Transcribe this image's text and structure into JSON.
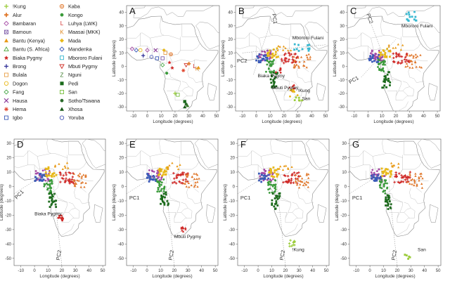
{
  "legend": {
    "col1": [
      {
        "name": "!Kung",
        "color": "#9ccc3c",
        "marker": "plus"
      },
      {
        "name": "Alur",
        "color": "#e0782c",
        "marker": "cross"
      },
      {
        "name": "Bambaran",
        "color": "#a54aa5",
        "marker": "open-diamond"
      },
      {
        "name": "Bamoun",
        "color": "#7c5aa8",
        "marker": "open-square-x"
      },
      {
        "name": "Bantu (Kenya)",
        "color": "#e89a18",
        "marker": "filled-triangle"
      },
      {
        "name": "Bantu (S. Africa)",
        "color": "#4ca63c",
        "marker": "open-triangle"
      },
      {
        "name": "Biaka Pygmy",
        "color": "#d02a28",
        "marker": "star"
      },
      {
        "name": "Brong",
        "color": "#333399",
        "marker": "plus"
      },
      {
        "name": "Bulala",
        "color": "#e8a048",
        "marker": "open-square"
      },
      {
        "name": "Dogon",
        "color": "#e8b818",
        "marker": "open-circle"
      },
      {
        "name": "Fang",
        "color": "#4caa4c",
        "marker": "open-diamond"
      },
      {
        "name": "Hausa",
        "color": "#8a3a9a",
        "marker": "x"
      },
      {
        "name": "Hema",
        "color": "#e04830",
        "marker": "asterisk"
      },
      {
        "name": "Igbo",
        "color": "#3a5ab8",
        "marker": "open-square"
      }
    ],
    "col2": [
      {
        "name": "Kaba",
        "color": "#e0782c",
        "marker": "circle-cross"
      },
      {
        "name": "Kongo",
        "color": "#3a9a3a",
        "marker": "filled-circle"
      },
      {
        "name": "Luhya (LWK)",
        "color": "#d02a28",
        "marker": "L"
      },
      {
        "name": "Maasai (MKK)",
        "color": "#e08820",
        "marker": "K"
      },
      {
        "name": "Mada",
        "color": "#e8b818",
        "marker": "filled-diamond"
      },
      {
        "name": "Mandenka",
        "color": "#3a5ab8",
        "marker": "open-diamond"
      },
      {
        "name": "Mbororo Fulani",
        "color": "#38b8d0",
        "marker": "open-square-b"
      },
      {
        "name": "Mbuti Pygmy",
        "color": "#d03028",
        "marker": "open-triangle-down"
      },
      {
        "name": "Nguni",
        "color": "#3a7a2a",
        "marker": "Z"
      },
      {
        "name": "Pedi",
        "color": "#1a6a1a",
        "marker": "filled-square"
      },
      {
        "name": "San",
        "color": "#7ac040",
        "marker": "open-square-g"
      },
      {
        "name": "Sotho/Tswana",
        "color": "#2a6a2a",
        "marker": "filled-circle-dk"
      },
      {
        "name": "Xhosa",
        "color": "#1a5a1a",
        "marker": "filled-triangle-dk"
      },
      {
        "name": "Yoruba",
        "color": "#4a5ab8",
        "marker": "open-circle-b"
      }
    ]
  },
  "panels": [
    {
      "id": "A",
      "label": "A",
      "xlabel": "Longitude (degrees)",
      "ylabel": "Latitude (degrees)",
      "xticks": [
        "-10",
        "0",
        "10",
        "20",
        "30",
        "40",
        "50"
      ],
      "yticks": [
        "40",
        "30",
        "20",
        "10",
        "0",
        "-10",
        "-20",
        "-30"
      ],
      "annotations": [],
      "pc1": "",
      "pc2": ""
    },
    {
      "id": "B",
      "label": "B",
      "xlabel": "Longitude (degrees)",
      "ylabel": "Latitude (degrees)",
      "xticks": [
        "-10",
        "0",
        "10",
        "20",
        "30",
        "40",
        "50"
      ],
      "yticks": [
        "40",
        "30",
        "20",
        "10",
        "0",
        "-10",
        "-20",
        "-30"
      ],
      "annotations": [
        "Mbororo Fulani",
        "Biaka Pygmy",
        "Mbuti Pygmy",
        "!Kung",
        "San"
      ],
      "pc1": "",
      "pc2": "PC2",
      "pctop": "PC1"
    },
    {
      "id": "C",
      "label": "C",
      "xlabel": "Longitude (degrees)",
      "ylabel": "Latitude (degrees)",
      "xticks": [
        "-10",
        "0",
        "10",
        "20",
        "30",
        "40",
        "50"
      ],
      "yticks": [
        "40",
        "30",
        "20",
        "10",
        "0",
        "-10",
        "-20",
        "-30"
      ],
      "annotations": [
        "Mbororo Fulani"
      ],
      "pc1": "PC1",
      "pc2": "",
      "pctop": "PC2"
    },
    {
      "id": "D",
      "label": "D",
      "xlabel": "Longitude (degrees)",
      "ylabel": "Latitude (degrees)",
      "xticks": [
        "-10",
        "0",
        "10",
        "20",
        "30",
        "40",
        "50"
      ],
      "yticks": [
        "30",
        "20",
        "10",
        "0",
        "-10",
        "-20",
        "-30",
        "-40",
        "-50"
      ],
      "annotations": [
        "Biaka Pygmy"
      ],
      "pc1": "PC1",
      "pc2": "PC2"
    },
    {
      "id": "E",
      "label": "E",
      "xlabel": "Longitude (degrees)",
      "ylabel": "Latitude (degrees)",
      "xticks": [
        "-10",
        "0",
        "10",
        "20",
        "30",
        "40",
        "50"
      ],
      "yticks": [
        "30",
        "20",
        "10",
        "0",
        "-10",
        "-20",
        "-30",
        "-40",
        "-50"
      ],
      "annotations": [
        "Mbuti Pygmy"
      ],
      "pc1": "PC1",
      "pc2": "PC2"
    },
    {
      "id": "F",
      "label": "F",
      "xlabel": "Longitude (degrees)",
      "ylabel": "Latitude (degrees)",
      "xticks": [
        "-10",
        "0",
        "10",
        "20",
        "30",
        "40",
        "50"
      ],
      "yticks": [
        "30",
        "20",
        "10",
        "0",
        "-10",
        "-20",
        "-30",
        "-40",
        "-50"
      ],
      "annotations": [
        "!Kung"
      ],
      "pc1": "PC1",
      "pc2": "PC2"
    },
    {
      "id": "G",
      "label": "G",
      "xlabel": "Longitude (degrees)",
      "ylabel": "Latitude (degrees)",
      "xticks": [
        "-10",
        "0",
        "10",
        "20",
        "30",
        "40",
        "50"
      ],
      "yticks": [
        "30",
        "20",
        "10",
        "0",
        "-10",
        "-20",
        "-30",
        "-40",
        "-50"
      ],
      "annotations": [
        "San"
      ],
      "pc1": "PC1",
      "pc2": "PC2"
    }
  ]
}
